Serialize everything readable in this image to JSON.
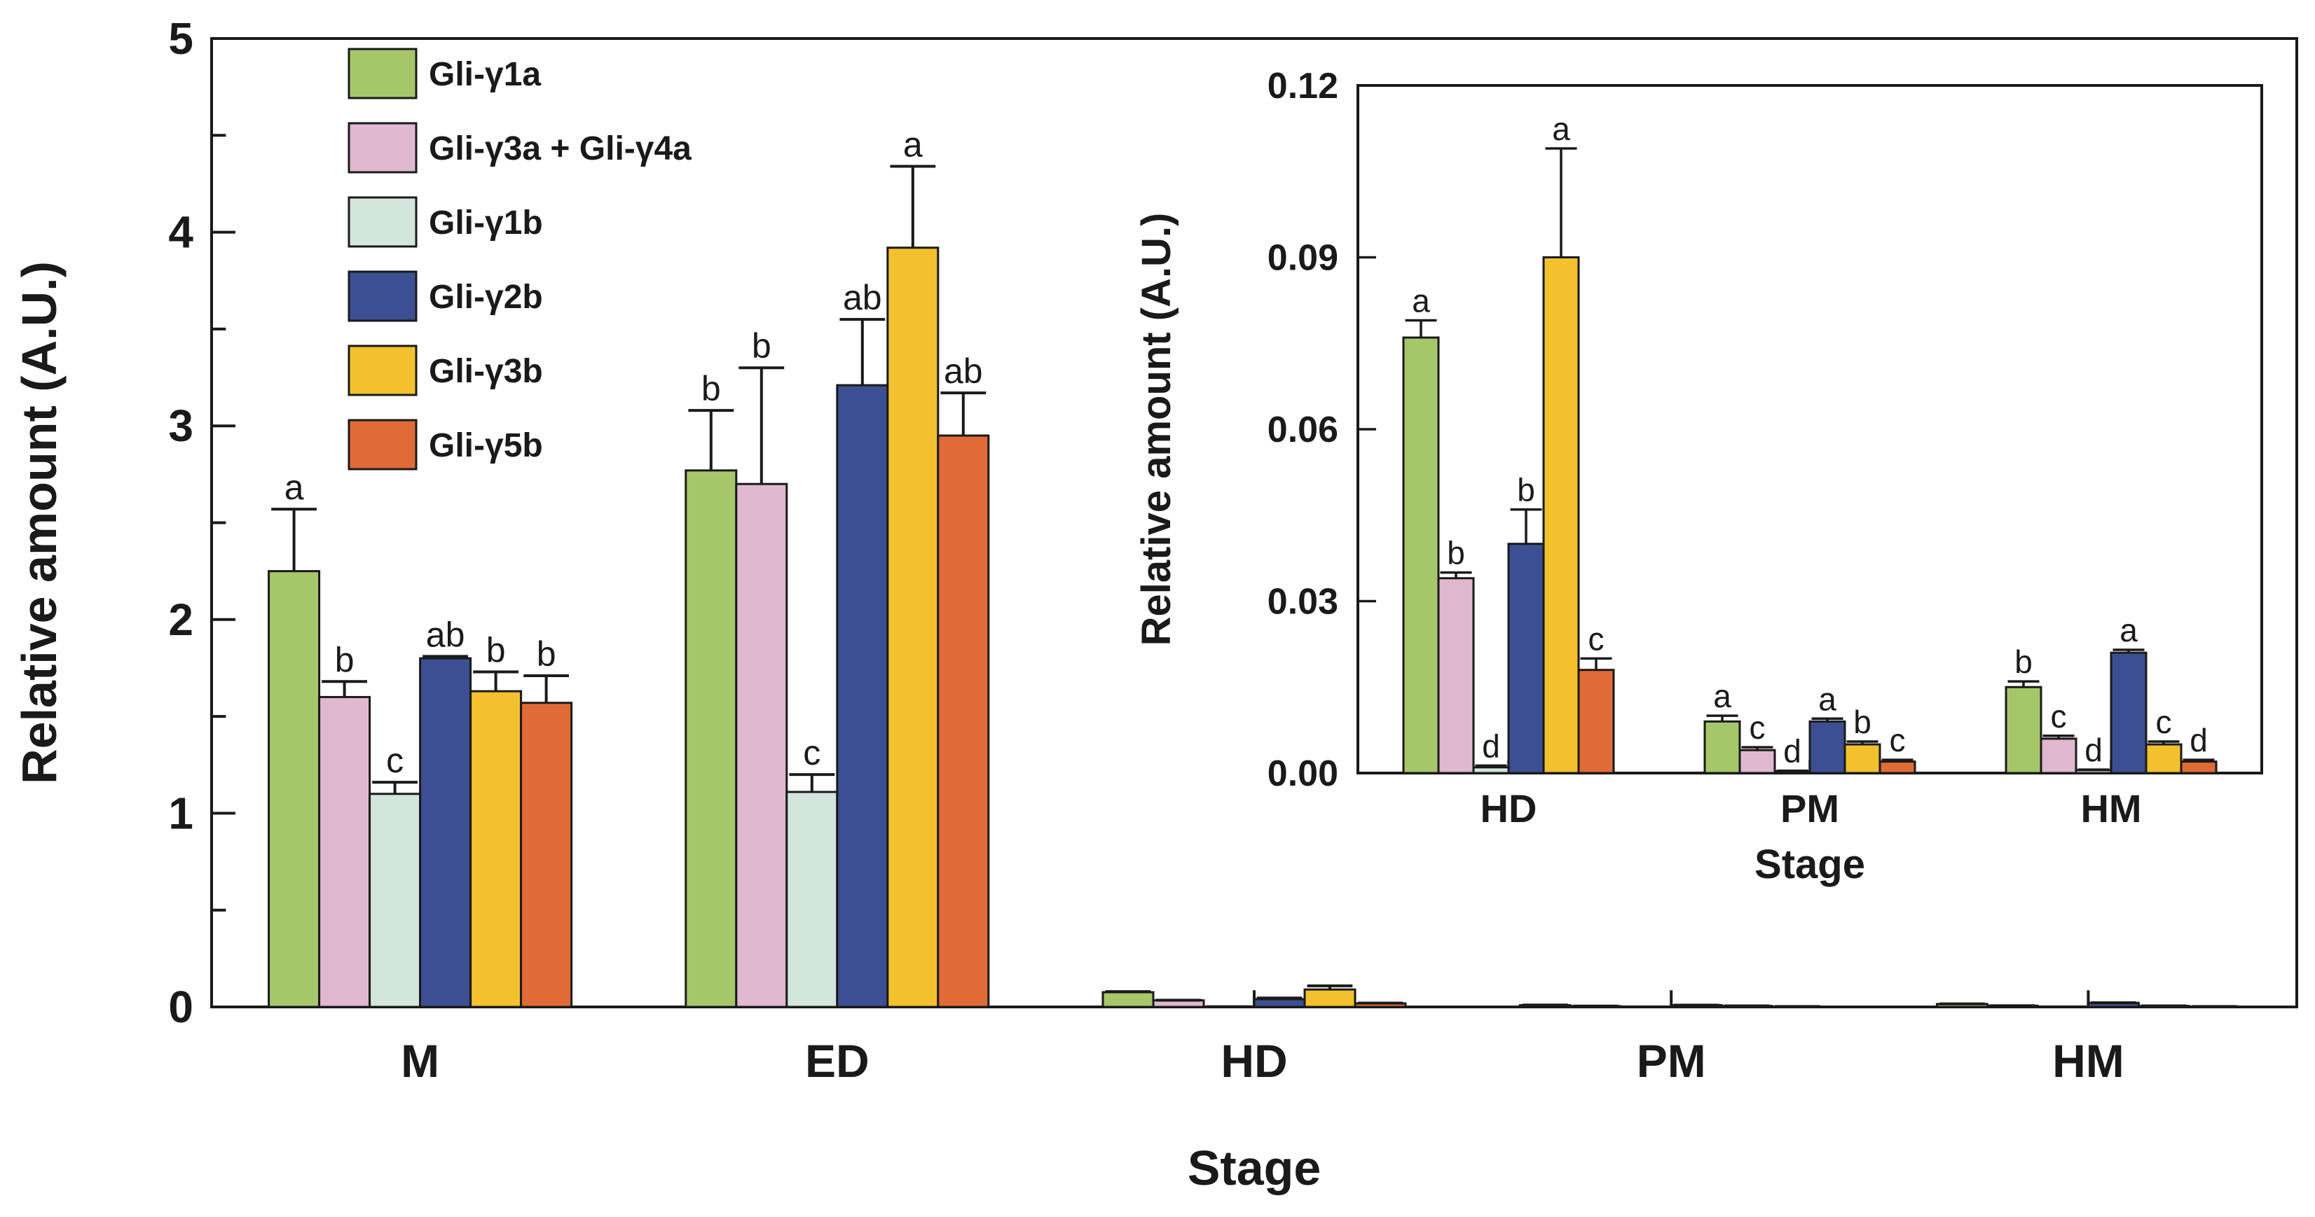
{
  "chart_data": [
    {
      "type": "bar",
      "xlabel": "Stage",
      "ylabel": "Relative amount (A.U.)",
      "ylim": [
        0,
        5
      ],
      "yticks": [
        "0",
        "1",
        "2",
        "3",
        "4",
        "5"
      ],
      "categories": [
        "M",
        "ED",
        "HD",
        "PM",
        "HM"
      ],
      "legend": {
        "position": "top-left"
      },
      "series": [
        {
          "name": "Gli-γ1a",
          "color": "#a6c769",
          "values": [
            2.25,
            2.77,
            0.076,
            0.009,
            0.015
          ],
          "errors": [
            0.32,
            0.31,
            0.003,
            0.001,
            0.001
          ],
          "labels": [
            "a",
            "b",
            "",
            "",
            ""
          ]
        },
        {
          "name": "Gli-γ3a + Gli-γ4a",
          "color": "#e0b8d0",
          "values": [
            1.6,
            2.7,
            0.034,
            0.004,
            0.006
          ],
          "errors": [
            0.08,
            0.6,
            0.001,
            0.0005,
            0.0005
          ],
          "labels": [
            "b",
            "b",
            "",
            "",
            ""
          ]
        },
        {
          "name": "Gli-γ1b",
          "color": "#d3e6dc",
          "values": [
            1.1,
            1.11,
            0.001,
            0.0003,
            0.0005
          ],
          "errors": [
            0.06,
            0.09,
            0.0003,
            0.0001,
            0.0001
          ],
          "labels": [
            "c",
            "c",
            "",
            "",
            ""
          ]
        },
        {
          "name": "Gli-γ2b",
          "color": "#3c4f92",
          "values": [
            1.8,
            3.21,
            0.04,
            0.009,
            0.021
          ],
          "errors": [
            0.01,
            0.34,
            0.006,
            0.0005,
            0.0005
          ],
          "labels": [
            "ab",
            "ab",
            "",
            "",
            ""
          ]
        },
        {
          "name": "Gli-γ3b",
          "color": "#f3c12e",
          "values": [
            1.63,
            3.92,
            0.09,
            0.005,
            0.005
          ],
          "errors": [
            0.1,
            0.42,
            0.019,
            0.0005,
            0.0005
          ],
          "labels": [
            "b",
            "a",
            "",
            "",
            ""
          ]
        },
        {
          "name": "Gli-γ5b",
          "color": "#e16b36",
          "values": [
            1.57,
            2.95,
            0.018,
            0.002,
            0.002
          ],
          "errors": [
            0.14,
            0.22,
            0.002,
            0.0003,
            0.0003
          ],
          "labels": [
            "b",
            "ab",
            "",
            "",
            ""
          ]
        }
      ]
    },
    {
      "type": "bar",
      "inset": true,
      "xlabel": "Stage",
      "ylabel": "Relative amount (A.U.)",
      "ylim": [
        0,
        0.12
      ],
      "yticks": [
        "0.00",
        "0.03",
        "0.06",
        "0.09",
        "0.12"
      ],
      "categories": [
        "HD",
        "PM",
        "HM"
      ],
      "series": [
        {
          "name": "Gli-γ1a",
          "color": "#a6c769",
          "values": [
            0.076,
            0.009,
            0.015
          ],
          "errors": [
            0.003,
            0.001,
            0.001
          ],
          "labels": [
            "a",
            "a",
            "b"
          ]
        },
        {
          "name": "Gli-γ3a + Gli-γ4a",
          "color": "#e0b8d0",
          "values": [
            0.034,
            0.004,
            0.006
          ],
          "errors": [
            0.001,
            0.0005,
            0.0005
          ],
          "labels": [
            "b",
            "c",
            "c"
          ]
        },
        {
          "name": "Gli-γ1b",
          "color": "#d3e6dc",
          "values": [
            0.001,
            0.0003,
            0.0005
          ],
          "errors": [
            0.0003,
            0.0001,
            0.0001
          ],
          "labels": [
            "d",
            "d",
            "d"
          ]
        },
        {
          "name": "Gli-γ2b",
          "color": "#3c4f92",
          "values": [
            0.04,
            0.009,
            0.021
          ],
          "errors": [
            0.006,
            0.0005,
            0.0005
          ],
          "labels": [
            "b",
            "a",
            "a"
          ]
        },
        {
          "name": "Gli-γ3b",
          "color": "#f3c12e",
          "values": [
            0.09,
            0.005,
            0.005
          ],
          "errors": [
            0.019,
            0.0005,
            0.0005
          ],
          "labels": [
            "a",
            "b",
            "c"
          ]
        },
        {
          "name": "Gli-γ5b",
          "color": "#e16b36",
          "values": [
            0.018,
            0.002,
            0.002
          ],
          "errors": [
            0.002,
            0.0003,
            0.0003
          ],
          "labels": [
            "c",
            "c",
            "d"
          ]
        }
      ]
    }
  ]
}
